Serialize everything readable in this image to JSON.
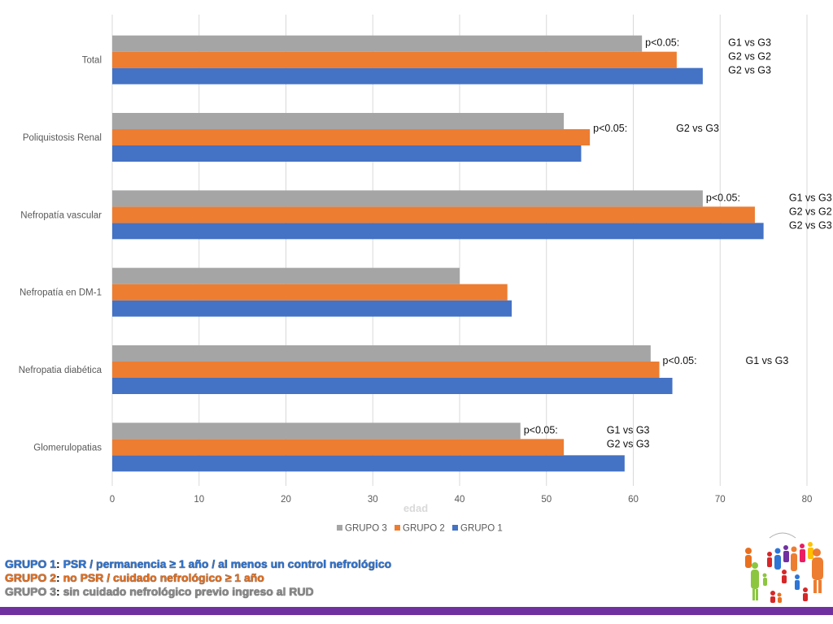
{
  "chart_data": {
    "type": "bar",
    "orientation": "horizontal",
    "categories": [
      "Glomerulopatias",
      "Nefropatia diabética",
      "Nefropatía en DM-1",
      "Nefropatía vascular",
      "Poliquistosis Renal",
      "Total"
    ],
    "series": [
      {
        "name": "GRUPO 1",
        "color": "#4472c4",
        "values": [
          59,
          64.5,
          46,
          75,
          54,
          68
        ]
      },
      {
        "name": "GRUPO 2",
        "color": "#ed7d31",
        "values": [
          52,
          63,
          45.5,
          74,
          55,
          65
        ]
      },
      {
        "name": "GRUPO 3",
        "color": "#a5a5a5",
        "values": [
          47,
          62,
          40,
          68,
          52,
          61
        ]
      }
    ],
    "xlim": [
      0,
      80
    ],
    "xticks": [
      0,
      10,
      20,
      30,
      40,
      50,
      60,
      70,
      80
    ],
    "xlabel": "edad",
    "ylabel": "",
    "title": "",
    "grid": "vertical",
    "legend": {
      "position": "bottom",
      "order": [
        "GRUPO 3",
        "GRUPO 2",
        "GRUPO 1"
      ]
    },
    "annotations": [
      {
        "category": "Total",
        "p_text": "p<0.05:",
        "comparisons": [
          "G1 vs G3",
          "G2 vs G2",
          "G2 vs G3"
        ]
      },
      {
        "category": "Poliquistosis Renal",
        "p_text": "p<0.05:",
        "comparisons": [
          "G2 vs G3"
        ]
      },
      {
        "category": "Nefropatía vascular",
        "p_text": "p<0.05:",
        "comparisons": [
          "G1 vs G3",
          "G2 vs G2",
          "G2 vs G3"
        ]
      },
      {
        "category": "Nefropatia diabética",
        "p_text": "p<0.05:",
        "comparisons": [
          "G1 vs G3"
        ]
      },
      {
        "category": "Glomerulopatias",
        "p_text": "p<0.05:",
        "comparisons": [
          "G1 vs G3",
          "G2 vs G3"
        ]
      }
    ]
  },
  "footnotes": [
    {
      "key": "GRUPO 1",
      "separator": ":",
      "text": " PSR / permanencia ≥ 1 año / al menos un control nefrológico",
      "color": "#2e75d6"
    },
    {
      "key": "GRUPO 2",
      "separator": ":",
      "text": " no PSR / cuidado nefrológico ≥ 1 año",
      "color": "#e8701f"
    },
    {
      "key": "GRUPO 3",
      "separator": ":",
      "text": " sin cuidado nefrológico previo ingreso al RUD",
      "color": "#8c8c8c"
    }
  ],
  "colors": {
    "bottom_bar": "#7030a0",
    "grid": "#d9d9d9"
  },
  "logo": {
    "name": "people-crowd-logo"
  }
}
